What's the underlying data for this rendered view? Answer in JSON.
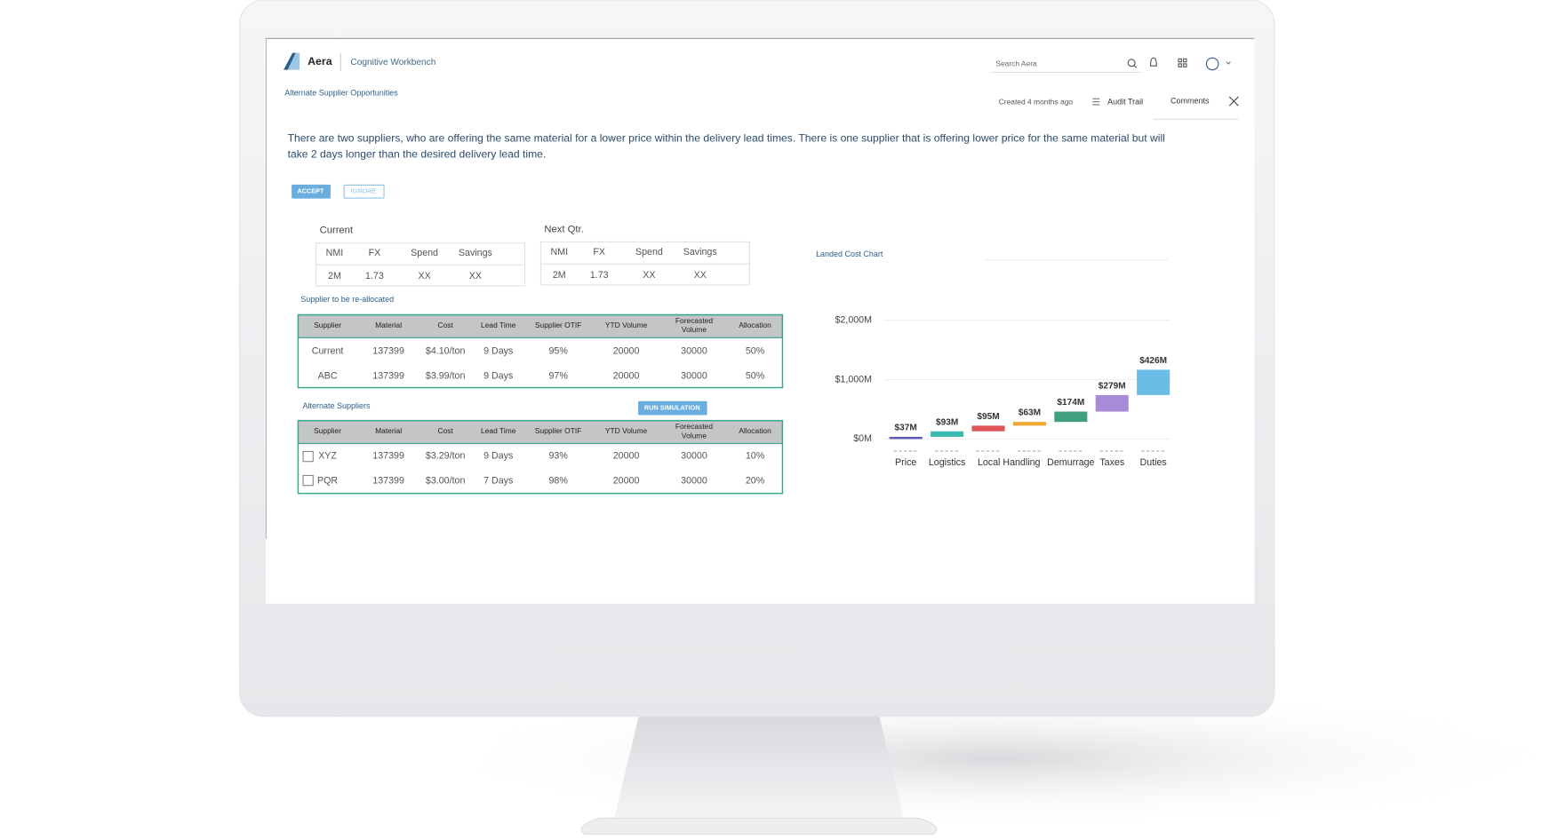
{
  "header": {
    "brand": "Aera",
    "app": "Cognitive Workbench",
    "search": "Search Aera",
    "breadcrumb": "Alternate Supplier Opportunities",
    "created": "Created 4 months ago",
    "audit": "Audit Trail",
    "comments": "Comments"
  },
  "summary": "There are two suppliers, who are offering the same material for a lower price within the delivery lead times. There is one supplier that is offering lower price for the same material but will take 2 days longer than the desired delivery lead time.",
  "buttons": {
    "accept": "ACCEPT",
    "ignore": "IGNORE",
    "simulate": "RUN SIMULATION"
  },
  "current": {
    "title": "Current",
    "headers": [
      "NMI",
      "FX",
      "Spend",
      "Savings"
    ],
    "row": [
      "2M",
      "1.73",
      "XX",
      "XX"
    ]
  },
  "next": {
    "title": "Next Qtr.",
    "headers": [
      "NMI",
      "FX",
      "Spend",
      "Savings"
    ],
    "row": [
      "2M",
      "1.73",
      "XX",
      "XX"
    ]
  },
  "reallocated": {
    "title": "Supplier to be re-allocated",
    "headers": [
      "Supplier",
      "Material",
      "Cost",
      "Lead Time",
      "Supplier OTIF",
      "YTD Volume",
      "Forecasted Volume",
      "Allocation"
    ],
    "rows": [
      [
        "Current",
        "137399",
        "$4.10/ton",
        "9 Days",
        "95%",
        "20000",
        "30000",
        "50%"
      ],
      [
        "ABC",
        "137399",
        "$3.99/ton",
        "9 Days",
        "97%",
        "20000",
        "30000",
        "50%"
      ]
    ]
  },
  "alternate": {
    "title": "Alternate Suppliers",
    "headers": [
      "Supplier",
      "Material",
      "Cost",
      "Lead Time",
      "Supplier OTIF",
      "YTD Volume",
      "Forecasted Volume",
      "Allocation"
    ],
    "rows": [
      [
        "XYZ",
        "137399",
        "$3.29/ton",
        "9 Days",
        "93%",
        "20000",
        "30000",
        "10%"
      ],
      [
        "PQR",
        "137399",
        "$3.00/ton",
        "7 Days",
        "98%",
        "20000",
        "30000",
        "20%"
      ]
    ]
  },
  "chart_data": {
    "type": "waterfall",
    "title": "Landed Cost Chart",
    "categories": [
      "Price",
      "Logistics",
      "Local Handling",
      null,
      "Demurrage",
      "Taxes",
      "Duties"
    ],
    "values": [
      37,
      93,
      95,
      63,
      174,
      279,
      426
    ],
    "value_labels": [
      "$37M",
      "$93M",
      "$95M",
      "$63M",
      "$174M",
      "$279M",
      "$426M"
    ],
    "colors": [
      "#5b5bb5",
      "#3dbab0",
      "#e05555",
      "#f0a830",
      "#3f9f7f",
      "#a98ad6",
      "#6bbde8"
    ],
    "ylim": [
      0,
      2000
    ],
    "yticks": [
      {
        "value": 0,
        "label": "$0M"
      },
      {
        "value": 1000,
        "label": "$1,000M"
      },
      {
        "value": 2000,
        "label": "$2,000M"
      }
    ],
    "grid": true
  }
}
